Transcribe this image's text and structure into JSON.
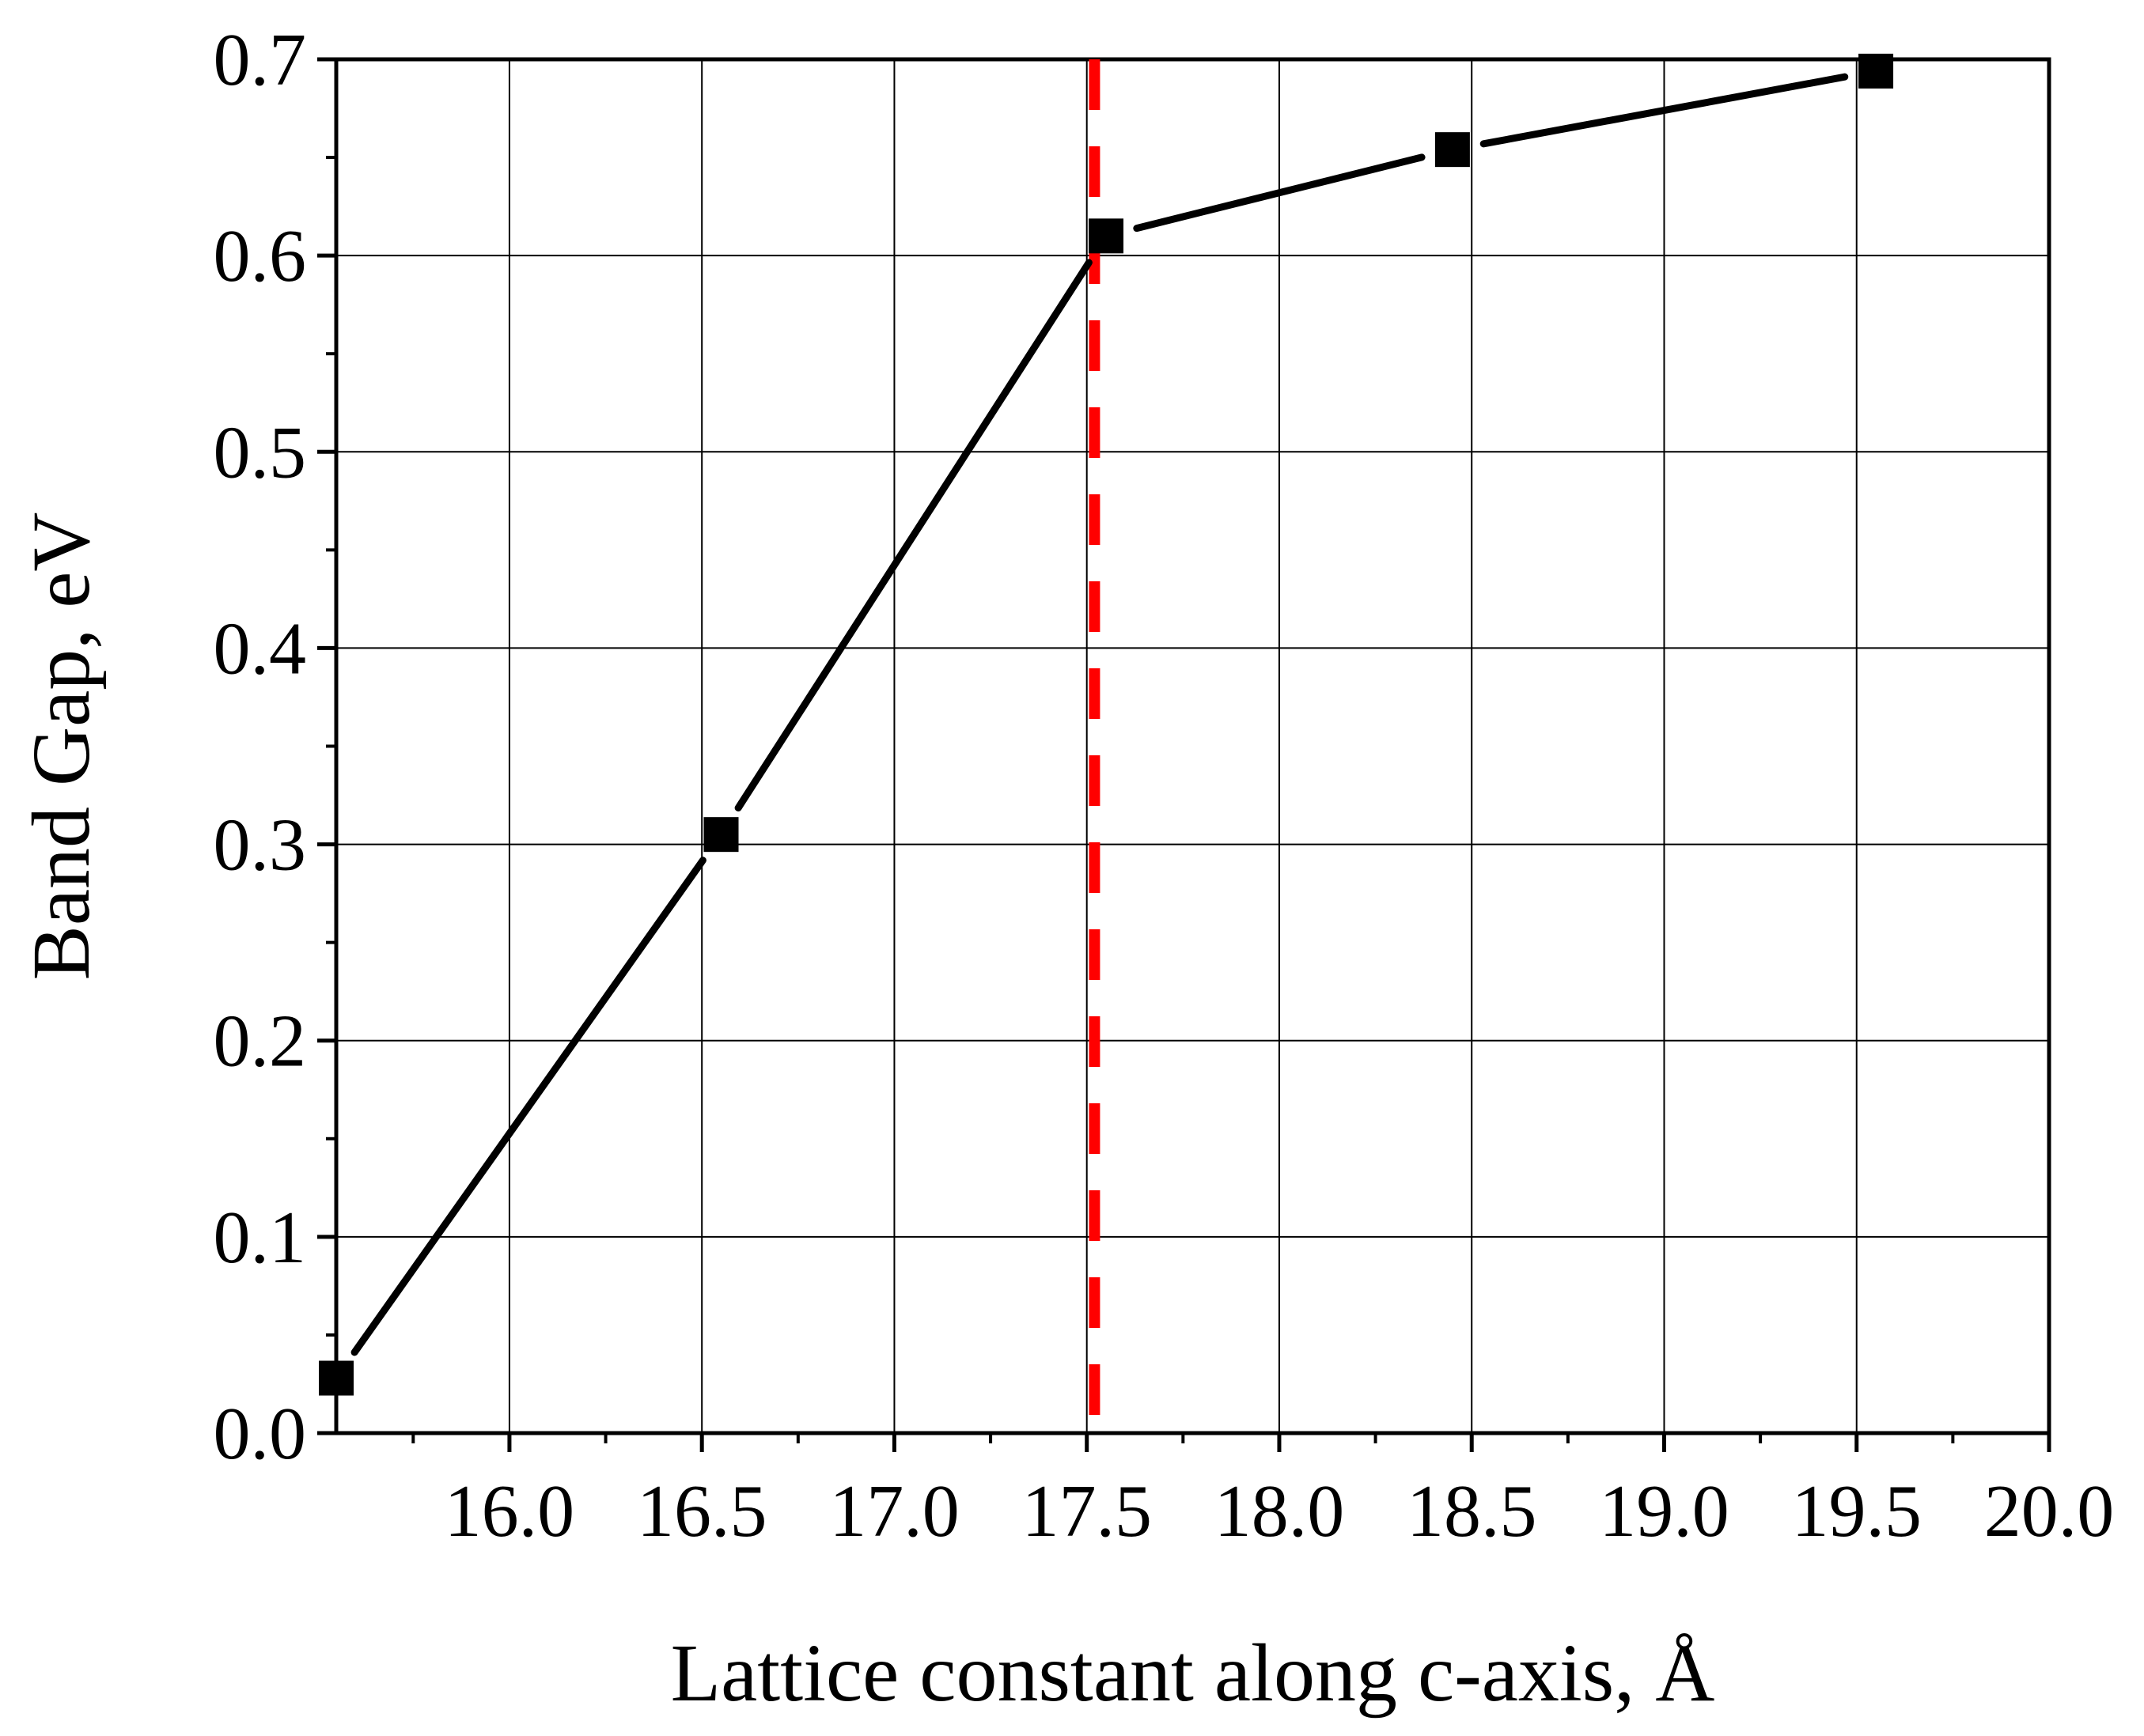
{
  "chart_data": {
    "type": "line",
    "title": "",
    "xlabel": "Lattice constant along c-axis, Å",
    "ylabel": "Band Gap, eV",
    "xlim": [
      15.55,
      20.0
    ],
    "ylim": [
      0.0,
      0.7
    ],
    "xticks": [
      "16.0",
      "16.5",
      "17.0",
      "17.5",
      "18.0",
      "18.5",
      "19.0",
      "19.5",
      "20.0"
    ],
    "xtick_values": [
      16.0,
      16.5,
      17.0,
      17.5,
      18.0,
      18.5,
      19.0,
      19.5,
      20.0
    ],
    "yticks": [
      "0.0",
      "0.1",
      "0.2",
      "0.3",
      "0.4",
      "0.5",
      "0.6",
      "0.7"
    ],
    "ytick_values": [
      0.0,
      0.1,
      0.2,
      0.3,
      0.4,
      0.5,
      0.6,
      0.7
    ],
    "grid": true,
    "series": [
      {
        "x": [
          15.55,
          16.55,
          17.55,
          18.45,
          19.55
        ],
        "y": [
          0.028,
          0.305,
          0.61,
          0.654,
          0.694
        ],
        "marker": "square",
        "color": "#000000"
      }
    ],
    "annotations": {
      "vertical_reference_line": {
        "x": 17.52,
        "style": "dashed",
        "color": "#ff0000"
      }
    }
  }
}
